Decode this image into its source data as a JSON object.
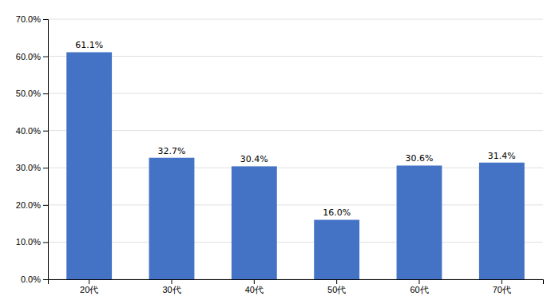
{
  "chart_data": {
    "type": "bar",
    "categories": [
      "20代",
      "30代",
      "40代",
      "50代",
      "60代",
      "70代"
    ],
    "values": [
      0.611,
      0.327,
      0.304,
      0.16,
      0.306,
      0.314
    ],
    "value_labels": [
      "61.1%",
      "32.7%",
      "30.4%",
      "16.0%",
      "30.6%",
      "31.4%"
    ],
    "color": "#4472C4",
    "ylim": [
      0.0,
      0.7
    ],
    "yticks": [
      {
        "value": 0.0,
        "label": "0.0%"
      },
      {
        "value": 0.1,
        "label": "10.0%"
      },
      {
        "value": 0.2,
        "label": "20.0%"
      },
      {
        "value": 0.3,
        "label": "30.0%"
      },
      {
        "value": 0.4,
        "label": "40.0%"
      },
      {
        "value": 0.5,
        "label": "50.0%"
      },
      {
        "value": 0.6,
        "label": "60.0%"
      },
      {
        "value": 0.7,
        "label": "70.0%"
      }
    ],
    "grid": true,
    "data_labels": true
  }
}
